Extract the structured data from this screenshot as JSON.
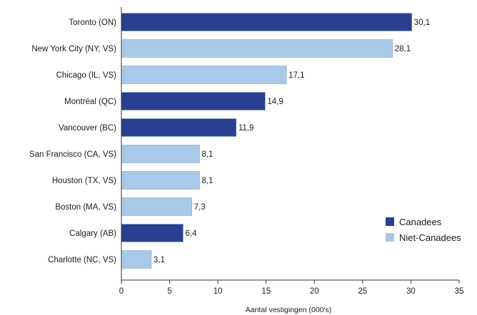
{
  "chart_data": {
    "type": "bar",
    "orientation": "horizontal",
    "categories": [
      "Toronto (ON)",
      "New York City (NY, VS)",
      "Chicago (IL, VS)",
      "Montréal (QC)",
      "Vancouver (BC)",
      "San Francisco (CA, VS)",
      "Houston (TX, VS)",
      "Boston (MA, VS)",
      "Calgary (AB)",
      "Charlotte (NC, VS)"
    ],
    "values": [
      30.1,
      28.1,
      17.1,
      14.9,
      11.9,
      8.1,
      8.1,
      7.3,
      6.4,
      3.1
    ],
    "value_labels": [
      "30,1",
      "28,1",
      "17,1",
      "14,9",
      "11,9",
      "8,1",
      "8,1",
      "7,3",
      "6,4",
      "3,1"
    ],
    "groups": [
      "Canadees",
      "Niet-Canadees",
      "Niet-Canadees",
      "Canadees",
      "Canadees",
      "Niet-Canadees",
      "Niet-Canadees",
      "Niet-Canadees",
      "Canadees",
      "Niet-Canadees"
    ],
    "legend": [
      {
        "name": "Canadees",
        "color": "#2a3f8f"
      },
      {
        "name": "Niet-Canadees",
        "color": "#a9c9e8"
      }
    ],
    "legend_position": "bottom-right",
    "xlabel": "Aantal vestigingen (000's)",
    "xlim": [
      0,
      35
    ],
    "xticks": [
      0,
      5,
      10,
      15,
      20,
      25,
      30,
      35
    ],
    "grid": false
  }
}
